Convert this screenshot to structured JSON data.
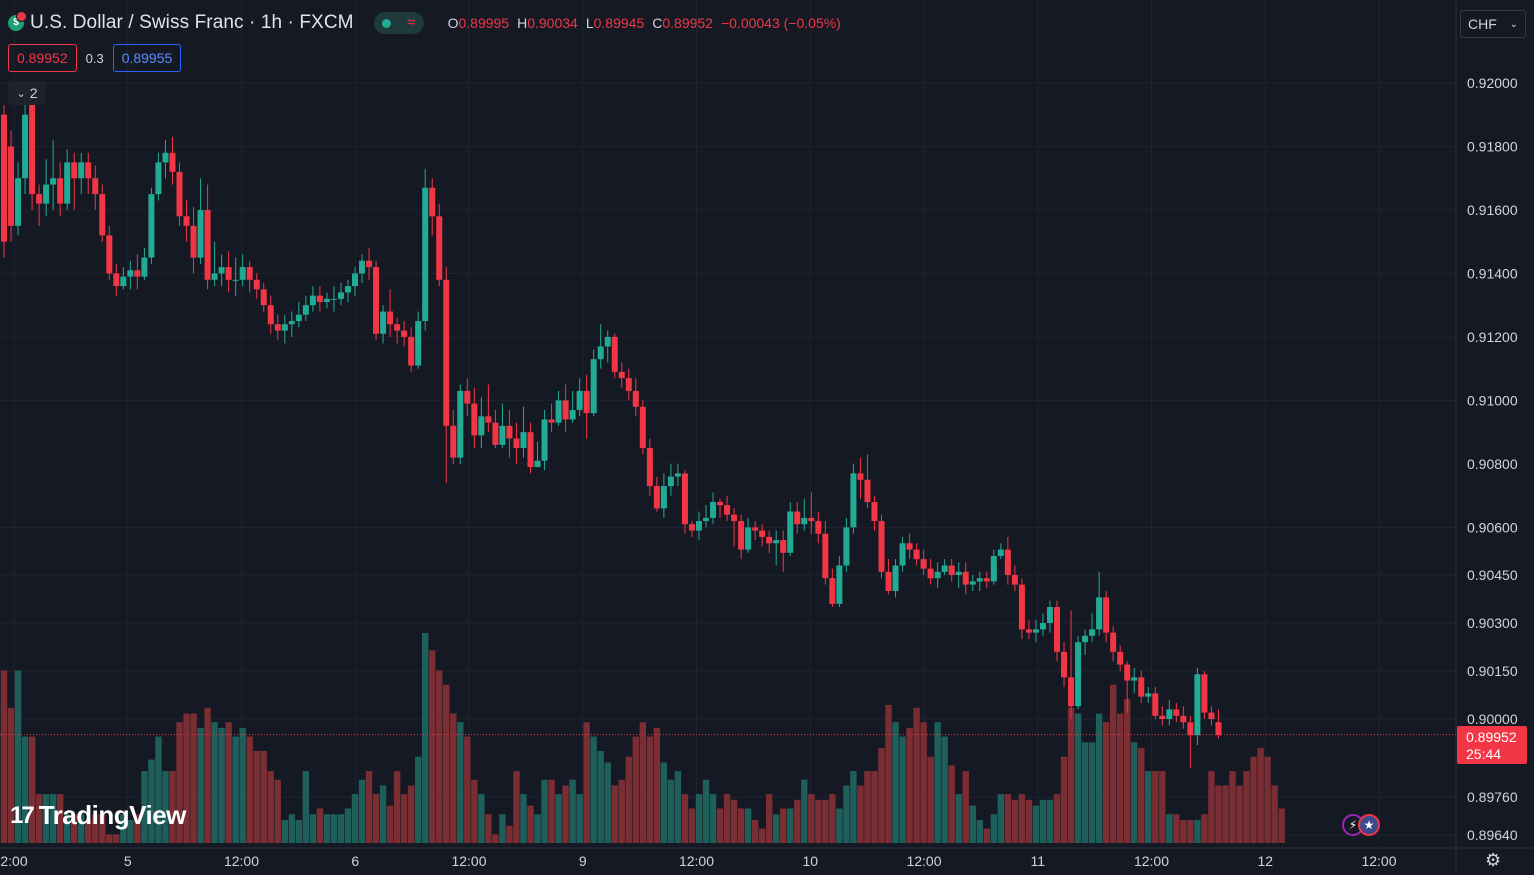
{
  "header": {
    "title": "U.S. Dollar / Swiss Franc · 1h · FXCM",
    "ohlc": [
      {
        "key": "O",
        "value": "0.89995"
      },
      {
        "key": "H",
        "value": "0.90034"
      },
      {
        "key": "L",
        "value": "0.89945"
      },
      {
        "key": "C",
        "value": "0.89952"
      }
    ],
    "change": "−0.00043 (−0.05%)"
  },
  "quotes": {
    "bid": "0.89952",
    "spread": "0.3",
    "ask": "0.89955"
  },
  "indicators_toggle": {
    "label": "2"
  },
  "currency": {
    "label": "CHF"
  },
  "logo": {
    "mark": "17",
    "text": "TradingView"
  },
  "last_price": {
    "price": "0.89952",
    "countdown": "25:44"
  },
  "colors": {
    "up": "#22ab94",
    "down": "#f23645",
    "vol_up": "#1e5f5b",
    "vol_down": "#7a2d32",
    "background": "#151924",
    "grid": "#1f2330",
    "text": "#d1d4dc"
  },
  "chart_data": {
    "type": "candlestick",
    "symbol": "USDCHF",
    "interval": "1h",
    "y_axis_ticks": [
      "0.92000",
      "0.91800",
      "0.91600",
      "0.91400",
      "0.91200",
      "0.91000",
      "0.90800",
      "0.90600",
      "0.90450",
      "0.90300",
      "0.90150",
      "0.90000",
      "0.89760",
      "0.89640"
    ],
    "x_axis_ticks": [
      "2:00",
      "5",
      "12:00",
      "6",
      "12:00",
      "9",
      "12:00",
      "10",
      "12:00",
      "11",
      "12:00",
      "12",
      "12:00"
    ],
    "price_segments": [
      [
        0.8964,
        0.8976
      ],
      [
        0.8976,
        0.9
      ],
      [
        0.9,
        0.9045
      ],
      [
        0.9045,
        0.92
      ]
    ],
    "candles": [
      [
        0.919,
        0.915,
        0.9193,
        0.9145
      ],
      [
        0.918,
        0.9155,
        0.9185,
        0.915
      ],
      [
        0.9155,
        0.917,
        0.9175,
        0.9152
      ],
      [
        0.917,
        0.919,
        0.9195,
        0.9165
      ],
      [
        0.9195,
        0.9165,
        0.9198,
        0.916
      ],
      [
        0.9165,
        0.9162,
        0.9168,
        0.9155
      ],
      [
        0.9162,
        0.9168,
        0.9176,
        0.9158
      ],
      [
        0.9168,
        0.917,
        0.9182,
        0.916
      ],
      [
        0.917,
        0.9162,
        0.9175,
        0.9158
      ],
      [
        0.9162,
        0.9175,
        0.9179,
        0.916
      ],
      [
        0.9175,
        0.917,
        0.9178,
        0.916
      ],
      [
        0.917,
        0.9175,
        0.9178,
        0.9165
      ],
      [
        0.9175,
        0.917,
        0.9178,
        0.9165
      ],
      [
        0.917,
        0.9165,
        0.9174,
        0.916
      ],
      [
        0.9165,
        0.9152,
        0.9168,
        0.915
      ],
      [
        0.9152,
        0.914,
        0.9155,
        0.9138
      ],
      [
        0.914,
        0.9136,
        0.9143,
        0.9133
      ],
      [
        0.9136,
        0.9139,
        0.9142,
        0.9135
      ],
      [
        0.9139,
        0.9141,
        0.9144,
        0.9135
      ],
      [
        0.9141,
        0.9139,
        0.9146,
        0.9135
      ],
      [
        0.9139,
        0.9145,
        0.9148,
        0.9138
      ],
      [
        0.9145,
        0.9165,
        0.9167,
        0.9143
      ],
      [
        0.9165,
        0.9175,
        0.9178,
        0.9163
      ],
      [
        0.9175,
        0.9178,
        0.9182,
        0.917
      ],
      [
        0.9178,
        0.9172,
        0.9183,
        0.9168
      ],
      [
        0.9172,
        0.9158,
        0.9175,
        0.9155
      ],
      [
        0.9158,
        0.9155,
        0.9163,
        0.915
      ],
      [
        0.9155,
        0.9145,
        0.9161,
        0.914
      ],
      [
        0.9145,
        0.916,
        0.917,
        0.9143
      ],
      [
        0.916,
        0.9138,
        0.9168,
        0.9135
      ],
      [
        0.9138,
        0.914,
        0.915,
        0.9136
      ],
      [
        0.914,
        0.9142,
        0.9146,
        0.9136
      ],
      [
        0.9142,
        0.9138,
        0.9147,
        0.9134
      ],
      [
        0.9138,
        0.9138,
        0.9145,
        0.9133
      ],
      [
        0.9138,
        0.9142,
        0.9146,
        0.9136
      ],
      [
        0.9142,
        0.9138,
        0.9144,
        0.9134
      ],
      [
        0.9138,
        0.9135,
        0.914,
        0.9132
      ],
      [
        0.9135,
        0.913,
        0.9137,
        0.9128
      ],
      [
        0.913,
        0.9124,
        0.9133,
        0.9121
      ],
      [
        0.9124,
        0.9122,
        0.9127,
        0.9119
      ],
      [
        0.9122,
        0.9124,
        0.9127,
        0.9118
      ],
      [
        0.9124,
        0.9125,
        0.9128,
        0.912
      ],
      [
        0.9125,
        0.9127,
        0.9131,
        0.9123
      ],
      [
        0.9127,
        0.913,
        0.9133,
        0.9125
      ],
      [
        0.913,
        0.9133,
        0.9136,
        0.9128
      ],
      [
        0.9133,
        0.9131,
        0.9136,
        0.9128
      ],
      [
        0.9131,
        0.9132,
        0.9134,
        0.9129
      ],
      [
        0.9132,
        0.9132,
        0.9136,
        0.9128
      ],
      [
        0.9132,
        0.9134,
        0.9137,
        0.913
      ],
      [
        0.9134,
        0.9136,
        0.9138,
        0.9131
      ],
      [
        0.9136,
        0.914,
        0.9142,
        0.9133
      ],
      [
        0.914,
        0.9144,
        0.9146,
        0.9137
      ],
      [
        0.9144,
        0.9142,
        0.9148,
        0.9138
      ],
      [
        0.9142,
        0.9121,
        0.9144,
        0.9119
      ],
      [
        0.9121,
        0.9128,
        0.913,
        0.9118
      ],
      [
        0.9128,
        0.9124,
        0.9135,
        0.912
      ],
      [
        0.9124,
        0.9122,
        0.9126,
        0.9118
      ],
      [
        0.9122,
        0.912,
        0.9125,
        0.9117
      ],
      [
        0.912,
        0.9111,
        0.9123,
        0.9109
      ],
      [
        0.9111,
        0.9125,
        0.9128,
        0.911
      ],
      [
        0.9125,
        0.9167,
        0.9173,
        0.9122
      ],
      [
        0.9167,
        0.9158,
        0.917,
        0.9152
      ],
      [
        0.9158,
        0.9138,
        0.9162,
        0.9136
      ],
      [
        0.9138,
        0.9092,
        0.9142,
        0.9074
      ],
      [
        0.9092,
        0.9082,
        0.9097,
        0.908
      ],
      [
        0.9082,
        0.9103,
        0.9105,
        0.908
      ],
      [
        0.9103,
        0.9099,
        0.9107,
        0.9095
      ],
      [
        0.9099,
        0.9089,
        0.9104,
        0.9085
      ],
      [
        0.9089,
        0.9095,
        0.9101,
        0.9085
      ],
      [
        0.9095,
        0.9093,
        0.9105,
        0.909
      ],
      [
        0.9093,
        0.9086,
        0.9097,
        0.9085
      ],
      [
        0.9086,
        0.9092,
        0.9099,
        0.9085
      ],
      [
        0.9092,
        0.9088,
        0.9097,
        0.9082
      ],
      [
        0.9088,
        0.9085,
        0.9093,
        0.908
      ],
      [
        0.9085,
        0.909,
        0.9098,
        0.9082
      ],
      [
        0.909,
        0.9079,
        0.9093,
        0.9077
      ],
      [
        0.9079,
        0.9081,
        0.9087,
        0.9079
      ],
      [
        0.9081,
        0.9094,
        0.9097,
        0.9078
      ],
      [
        0.9094,
        0.9093,
        0.9099,
        0.909
      ],
      [
        0.9093,
        0.91,
        0.9103,
        0.9092
      ],
      [
        0.91,
        0.9094,
        0.9105,
        0.909
      ],
      [
        0.9094,
        0.9097,
        0.9103,
        0.9093
      ],
      [
        0.9097,
        0.9103,
        0.9107,
        0.9095
      ],
      [
        0.9103,
        0.9096,
        0.9108,
        0.9088
      ],
      [
        0.9096,
        0.9113,
        0.9116,
        0.9095
      ],
      [
        0.9113,
        0.9117,
        0.9124,
        0.911
      ],
      [
        0.9117,
        0.912,
        0.9122,
        0.9112
      ],
      [
        0.912,
        0.9109,
        0.9121,
        0.9107
      ],
      [
        0.9109,
        0.9107,
        0.9112,
        0.9104
      ],
      [
        0.9107,
        0.9103,
        0.911,
        0.91
      ],
      [
        0.9103,
        0.9098,
        0.9107,
        0.9095
      ],
      [
        0.9098,
        0.9085,
        0.91,
        0.9083
      ],
      [
        0.9085,
        0.9073,
        0.9088,
        0.907
      ],
      [
        0.9073,
        0.9066,
        0.9076,
        0.9065
      ],
      [
        0.9066,
        0.9073,
        0.9077,
        0.9063
      ],
      [
        0.9073,
        0.9076,
        0.908,
        0.907
      ],
      [
        0.9076,
        0.9077,
        0.908,
        0.9073
      ],
      [
        0.9077,
        0.9061,
        0.9078,
        0.9058
      ],
      [
        0.9061,
        0.9059,
        0.9062,
        0.9057
      ],
      [
        0.9059,
        0.9062,
        0.9065,
        0.9056
      ],
      [
        0.9062,
        0.9063,
        0.9067,
        0.906
      ],
      [
        0.9063,
        0.9068,
        0.9071,
        0.9061
      ],
      [
        0.9068,
        0.9067,
        0.9069,
        0.9063
      ],
      [
        0.9067,
        0.9064,
        0.907,
        0.9062
      ],
      [
        0.9064,
        0.9062,
        0.9066,
        0.9054
      ],
      [
        0.9062,
        0.9053,
        0.9064,
        0.905
      ],
      [
        0.9053,
        0.906,
        0.9063,
        0.9052
      ],
      [
        0.906,
        0.9059,
        0.9062,
        0.9056
      ],
      [
        0.9059,
        0.9057,
        0.9061,
        0.9054
      ],
      [
        0.9057,
        0.9055,
        0.9059,
        0.9052
      ],
      [
        0.9055,
        0.9056,
        0.9059,
        0.9048
      ],
      [
        0.9056,
        0.9052,
        0.9059,
        0.9046
      ],
      [
        0.9052,
        0.9065,
        0.9068,
        0.9051
      ],
      [
        0.9065,
        0.9061,
        0.9068,
        0.9058
      ],
      [
        0.9061,
        0.9063,
        0.9069,
        0.9059
      ],
      [
        0.9063,
        0.9062,
        0.9071,
        0.9058
      ],
      [
        0.9062,
        0.9058,
        0.9065,
        0.9055
      ],
      [
        0.9058,
        0.9044,
        0.9062,
        0.9042
      ],
      [
        0.9044,
        0.9036,
        0.9047,
        0.9035
      ],
      [
        0.9036,
        0.9048,
        0.9051,
        0.9035
      ],
      [
        0.9048,
        0.906,
        0.9063,
        0.9046
      ],
      [
        0.906,
        0.9077,
        0.908,
        0.9058
      ],
      [
        0.9077,
        0.9075,
        0.9082,
        0.9069
      ],
      [
        0.9075,
        0.9068,
        0.9083,
        0.9066
      ],
      [
        0.9068,
        0.9062,
        0.907,
        0.9059
      ],
      [
        0.9062,
        0.9046,
        0.9064,
        0.9044
      ],
      [
        0.9046,
        0.904,
        0.905,
        0.9039
      ],
      [
        0.904,
        0.9048,
        0.905,
        0.9038
      ],
      [
        0.9048,
        0.9055,
        0.9057,
        0.9046
      ],
      [
        0.9055,
        0.9053,
        0.9058,
        0.905
      ],
      [
        0.9053,
        0.905,
        0.9055,
        0.9048
      ],
      [
        0.905,
        0.9047,
        0.9053,
        0.9045
      ],
      [
        0.9047,
        0.9044,
        0.905,
        0.9042
      ],
      [
        0.9044,
        0.9046,
        0.9049,
        0.9041
      ],
      [
        0.9046,
        0.9048,
        0.905,
        0.9045
      ],
      [
        0.9048,
        0.9045,
        0.905,
        0.9043
      ],
      [
        0.9045,
        0.9046,
        0.9049,
        0.9041
      ],
      [
        0.9046,
        0.9042,
        0.9049,
        0.9039
      ],
      [
        0.9042,
        0.9043,
        0.9045,
        0.904
      ],
      [
        0.9043,
        0.9044,
        0.9046,
        0.904
      ],
      [
        0.9044,
        0.9043,
        0.9046,
        0.9041
      ],
      [
        0.9043,
        0.9051,
        0.9053,
        0.9042
      ],
      [
        0.9051,
        0.9053,
        0.9055,
        0.905
      ],
      [
        0.9053,
        0.9045,
        0.9057,
        0.9042
      ],
      [
        0.9045,
        0.9042,
        0.9048,
        0.904
      ],
      [
        0.9042,
        0.9028,
        0.9044,
        0.9025
      ],
      [
        0.9028,
        0.9027,
        0.9031,
        0.9025
      ],
      [
        0.9027,
        0.9028,
        0.9031,
        0.9024
      ],
      [
        0.9028,
        0.903,
        0.9033,
        0.9026
      ],
      [
        0.903,
        0.9035,
        0.9037,
        0.9027
      ],
      [
        0.9035,
        0.9021,
        0.9037,
        0.9018
      ],
      [
        0.9021,
        0.9013,
        0.9024,
        0.901
      ],
      [
        0.9013,
        0.9004,
        0.9034,
        0.9
      ],
      [
        0.9004,
        0.9024,
        0.9026,
        0.9003
      ],
      [
        0.9024,
        0.9026,
        0.9028,
        0.902
      ],
      [
        0.9026,
        0.9028,
        0.9033,
        0.9024
      ],
      [
        0.9028,
        0.9038,
        0.9046,
        0.9026
      ],
      [
        0.9038,
        0.9027,
        0.904,
        0.9024
      ],
      [
        0.9027,
        0.9021,
        0.9029,
        0.9018
      ],
      [
        0.9021,
        0.9017,
        0.9023,
        0.9015
      ],
      [
        0.9017,
        0.9012,
        0.9018,
        0.9002
      ],
      [
        0.9012,
        0.9013,
        0.9016,
        0.9008
      ],
      [
        0.9013,
        0.9007,
        0.9015,
        0.9005
      ],
      [
        0.9007,
        0.9008,
        0.901,
        0.9005
      ],
      [
        0.9008,
        0.9001,
        0.901,
        0.9
      ],
      [
        0.9001,
        0.9,
        0.9004,
        0.8998
      ],
      [
        0.9,
        0.9003,
        0.9006,
        0.8998
      ],
      [
        0.9003,
        0.9001,
        0.9005,
        0.8999
      ],
      [
        0.9001,
        0.8999,
        0.9004,
        0.8997
      ],
      [
        0.8999,
        0.8995,
        0.9001,
        0.8985
      ],
      [
        0.8995,
        0.9014,
        0.9016,
        0.8992
      ],
      [
        0.9014,
        0.9002,
        0.9015,
        0.9
      ],
      [
        0.9002,
        0.9,
        0.9004,
        0.8998
      ],
      [
        0.8999,
        0.8995,
        0.9003,
        0.8994
      ]
    ],
    "volume": [
      60,
      47,
      60,
      37,
      37,
      17,
      17,
      17,
      17,
      10,
      10,
      10,
      8,
      10,
      10,
      3,
      3,
      10,
      8,
      10,
      25,
      29,
      37,
      25,
      25,
      42,
      45,
      45,
      40,
      47,
      42,
      40,
      42,
      37,
      40,
      37,
      32,
      32,
      25,
      22,
      8,
      10,
      8,
      25,
      10,
      12,
      10,
      10,
      10,
      12,
      17,
      22,
      25,
      17,
      20,
      13,
      25,
      17,
      20,
      30,
      73,
      67,
      60,
      55,
      45,
      42,
      37,
      22,
      17,
      10,
      3,
      10,
      6,
      25,
      17,
      13,
      10,
      22,
      22,
      17,
      20,
      22,
      17,
      42,
      37,
      32,
      28,
      20,
      22,
      30,
      37,
      42,
      37,
      40,
      28,
      22,
      25,
      17,
      12,
      17,
      22,
      17,
      12,
      17,
      15,
      12,
      12,
      8,
      5,
      17,
      10,
      12,
      12,
      15,
      22,
      17,
      15,
      15,
      17,
      12,
      20,
      25,
      20,
      25,
      25,
      33,
      48,
      42,
      37,
      40,
      47,
      42,
      30,
      42,
      37,
      27,
      17,
      25,
      13,
      8,
      5,
      10,
      17,
      17,
      15,
      17,
      15,
      13,
      15,
      15,
      17,
      30,
      47,
      45,
      35,
      35,
      45,
      42,
      55,
      45,
      50,
      35,
      33,
      25,
      25,
      25,
      10,
      10,
      8,
      8,
      8,
      10,
      25,
      20,
      20,
      25,
      20,
      25,
      30,
      33,
      30,
      20,
      12
    ]
  }
}
